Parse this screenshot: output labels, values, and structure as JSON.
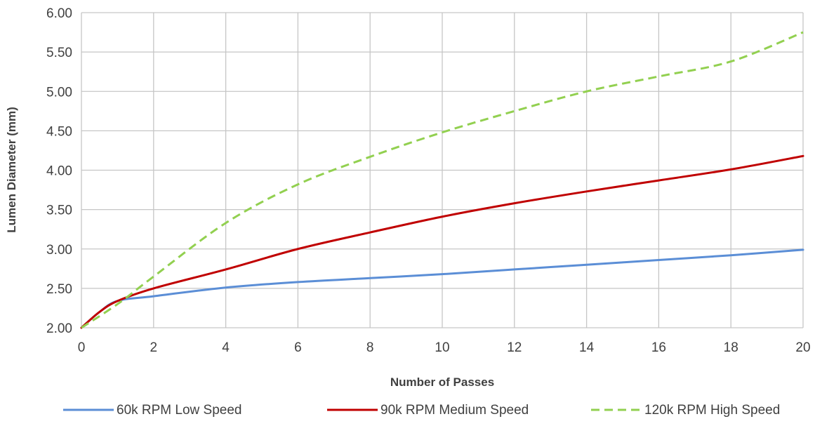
{
  "chart_data": {
    "type": "line",
    "title": "",
    "xlabel": "Number of Passes",
    "ylabel": "Lumen Diameter (mm)",
    "xlim": [
      0,
      20
    ],
    "ylim": [
      2.0,
      6.0
    ],
    "xticks": [
      "0",
      "2",
      "4",
      "6",
      "8",
      "10",
      "12",
      "14",
      "16",
      "18",
      "20"
    ],
    "yticks": [
      "2.00",
      "2.50",
      "3.00",
      "3.50",
      "4.00",
      "4.50",
      "5.00",
      "5.50",
      "6.00"
    ],
    "grid": true,
    "legend_position": "bottom",
    "series": [
      {
        "name": "60k RPM Low Speed",
        "color": "#5B8ED6",
        "dash": "solid",
        "x": [
          0,
          0.5,
          1,
          2,
          4,
          6,
          8,
          10,
          12,
          14,
          16,
          18,
          20
        ],
        "y": [
          2.0,
          2.2,
          2.34,
          2.4,
          2.51,
          2.58,
          2.63,
          2.68,
          2.74,
          2.8,
          2.86,
          2.92,
          2.99
        ]
      },
      {
        "name": "90k RPM Medium Speed",
        "color": "#C00000",
        "dash": "solid",
        "x": [
          0,
          0.5,
          1,
          2,
          4,
          6,
          8,
          10,
          12,
          14,
          16,
          18,
          20
        ],
        "y": [
          2.0,
          2.2,
          2.34,
          2.5,
          2.74,
          3.0,
          3.21,
          3.41,
          3.58,
          3.73,
          3.87,
          4.01,
          4.18
        ]
      },
      {
        "name": "120k RPM High Speed",
        "color": "#92D050",
        "dash": "dashed",
        "x": [
          0,
          1,
          2,
          4,
          6,
          8,
          10,
          12,
          14,
          16,
          18,
          20
        ],
        "y": [
          2.0,
          2.3,
          2.65,
          3.33,
          3.82,
          4.17,
          4.48,
          4.75,
          5.0,
          5.19,
          5.38,
          5.75
        ]
      }
    ]
  }
}
